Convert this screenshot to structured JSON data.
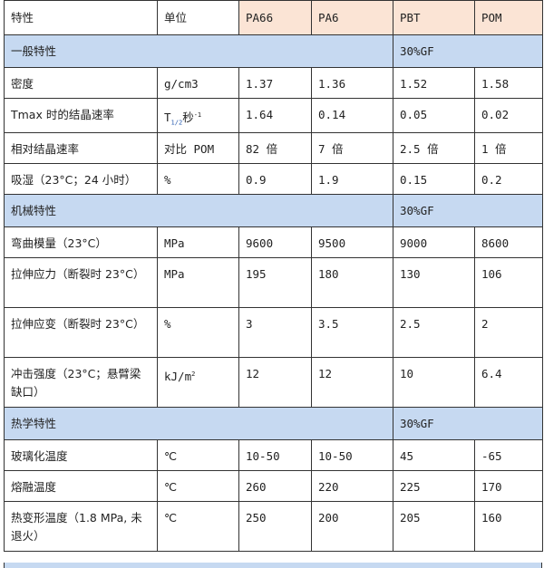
{
  "header": {
    "property": "特性",
    "unit": "单位",
    "materials": [
      "PA66",
      "PA6",
      "PBT",
      "POM"
    ]
  },
  "colors": {
    "header_material_bg": "#fbe4d5",
    "section_band_bg": "#c6d9f1"
  },
  "sections": [
    {
      "title": "一般特性",
      "note": "30%GF",
      "rows": [
        {
          "property": "密度",
          "unit": "g/cm3",
          "values": [
            "1.37",
            "1.36",
            "1.52",
            "1.58"
          ]
        },
        {
          "property": "Tmax 时的结晶速率",
          "unit_main": "T",
          "unit_sub": "1/2",
          "unit_rest": "秒",
          "unit_sup": "-1",
          "values": [
            "1.64",
            "0.14",
            "0.05",
            "0.02"
          ]
        },
        {
          "property": "相对结晶速率",
          "unit": "对比 POM",
          "values": [
            "82 倍",
            "7 倍",
            "2.5 倍",
            "1 倍"
          ]
        },
        {
          "property": "吸湿（23°C；24 小时）",
          "unit": "%",
          "values": [
            "0.9",
            "1.9",
            "0.15",
            "0.2"
          ]
        }
      ]
    },
    {
      "title": "机械特性",
      "note": "30%GF",
      "rows": [
        {
          "property": "弯曲模量（23°C）",
          "unit": "MPa",
          "values": [
            "9600",
            "9500",
            "9000",
            "8600"
          ]
        },
        {
          "property": "拉伸应力（断裂时 23°C）",
          "unit": "MPa",
          "values": [
            "195",
            "180",
            "130",
            "106"
          ]
        },
        {
          "property": "拉伸应变（断裂时 23°C）",
          "unit": "%",
          "values": [
            "3",
            "3.5",
            "2.5",
            "2"
          ]
        },
        {
          "property": "冲击强度（23°C；悬臂梁缺口）",
          "unit_main": "kJ/m",
          "unit_sup": "2",
          "values": [
            "12",
            "12",
            "10",
            "6.4"
          ]
        }
      ]
    },
    {
      "title": "热学特性",
      "note": "30%GF",
      "rows": [
        {
          "property": "玻璃化温度",
          "unit": "℃",
          "values": [
            "10-50",
            "10-50",
            "45",
            "-65"
          ]
        },
        {
          "property": "熔融温度",
          "unit": "℃",
          "values": [
            "260",
            "220",
            "225",
            "170"
          ]
        },
        {
          "property": "热变形温度（1.8 MPa, 未退火）",
          "unit": "℃",
          "values": [
            "250",
            "200",
            "205",
            "160"
          ]
        }
      ]
    }
  ]
}
